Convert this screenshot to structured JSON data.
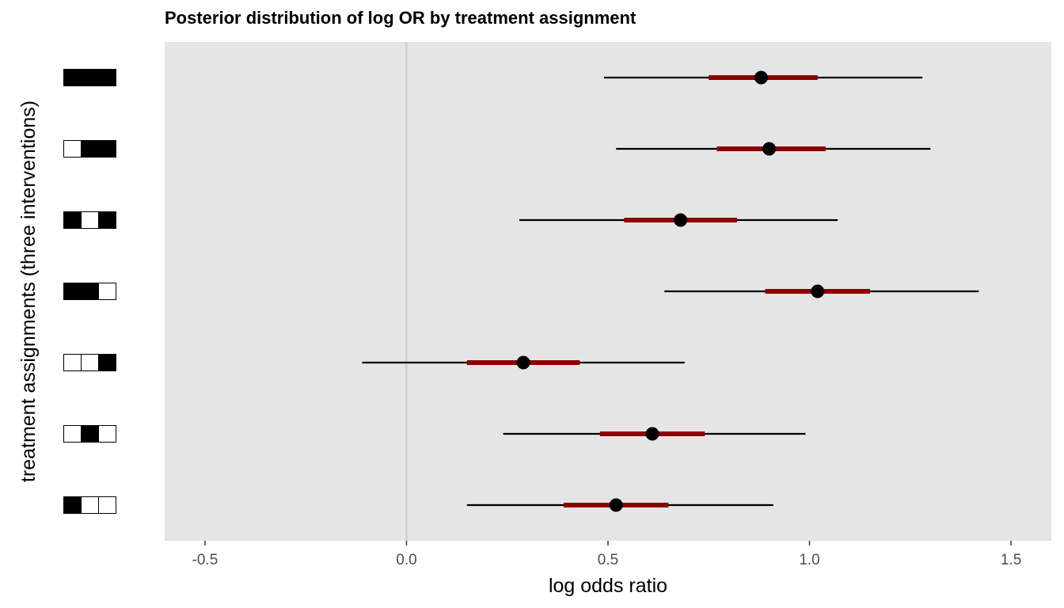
{
  "chart_data": {
    "type": "forest",
    "title": "Posterior distribution of log OR by treatment assignment",
    "xlabel": "log odds ratio",
    "ylabel": "treatment assignments (three interventions)",
    "xlim": [
      -0.6,
      1.6
    ],
    "x_ticks": [
      -0.5,
      0.0,
      0.5,
      1.0,
      1.5
    ],
    "x_tick_labels": [
      "-0.5",
      "0.0",
      "0.5",
      "1.0",
      "1.5"
    ],
    "reference_line": 0.0,
    "grid": false,
    "colors": {
      "panel_background": "#e5e5e5",
      "outer_interval": "#000000",
      "inner_interval": "#8b0000",
      "point": "#000000",
      "reference_line": "#d0d0d0"
    },
    "rows": [
      {
        "assignment": [
          1,
          1,
          1
        ],
        "median": 0.88,
        "inner": [
          0.75,
          1.02
        ],
        "outer": [
          0.49,
          1.28
        ]
      },
      {
        "assignment": [
          0,
          1,
          1
        ],
        "median": 0.9,
        "inner": [
          0.77,
          1.04
        ],
        "outer": [
          0.52,
          1.3
        ]
      },
      {
        "assignment": [
          1,
          0,
          1
        ],
        "median": 0.68,
        "inner": [
          0.54,
          0.82
        ],
        "outer": [
          0.28,
          1.07
        ]
      },
      {
        "assignment": [
          1,
          1,
          0
        ],
        "median": 1.02,
        "inner": [
          0.89,
          1.15
        ],
        "outer": [
          0.64,
          1.42
        ]
      },
      {
        "assignment": [
          0,
          0,
          1
        ],
        "median": 0.29,
        "inner": [
          0.15,
          0.43
        ],
        "outer": [
          -0.11,
          0.69
        ]
      },
      {
        "assignment": [
          0,
          1,
          0
        ],
        "median": 0.61,
        "inner": [
          0.48,
          0.74
        ],
        "outer": [
          0.24,
          0.99
        ]
      },
      {
        "assignment": [
          1,
          0,
          0
        ],
        "median": 0.52,
        "inner": [
          0.39,
          0.65
        ],
        "outer": [
          0.15,
          0.91
        ]
      }
    ]
  }
}
